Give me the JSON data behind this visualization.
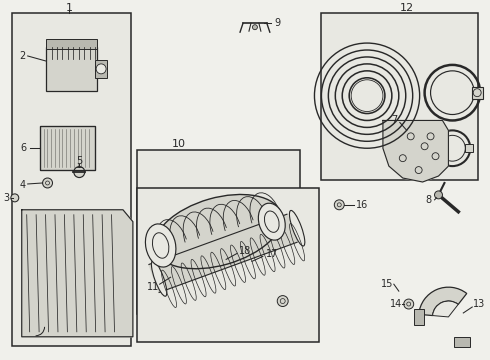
{
  "bg_color": "#f0f0eb",
  "line_color": "#282828",
  "gray": "#d4d4cc",
  "lgray": "#e8e8e2",
  "dgray": "#b8b8b0",
  "fig_width": 4.9,
  "fig_height": 3.6,
  "dpi": 100
}
